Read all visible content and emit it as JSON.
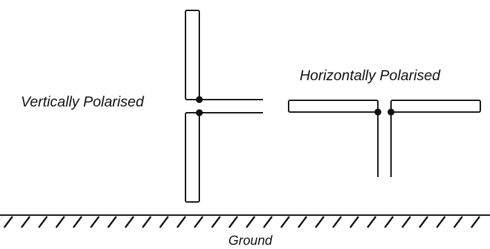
{
  "labels": {
    "vertical": "Vertically Polarised",
    "horizontal": "Horizontally Polarised",
    "ground": "Ground"
  },
  "colors": {
    "line": "#111111",
    "background": "#ffffff"
  }
}
